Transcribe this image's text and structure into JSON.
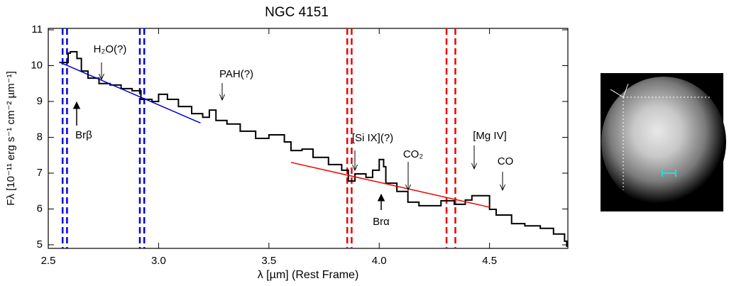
{
  "chart_data": {
    "type": "line",
    "title": "NGC 4151",
    "xlabel": "λ [µm] (Rest Frame)",
    "ylabel": "Fλ [10⁻¹¹ erg s⁻¹ cm⁻² µm⁻¹]",
    "xlim": [
      2.5,
      4.855
    ],
    "ylim": [
      4.9,
      11.04
    ],
    "xticks": [
      2.5,
      {
        "value": 3,
        "label": "3.0"
      },
      3.5,
      {
        "value": 4,
        "label": "4.0"
      },
      4.5
    ],
    "yticks": [
      5,
      6,
      7,
      8,
      9,
      10,
      11
    ],
    "series": [
      {
        "color": "#000000",
        "x": [
          2.55,
          2.59,
          2.6,
          2.63,
          2.65,
          2.68,
          2.73,
          2.78,
          2.83,
          2.88,
          2.92,
          2.97,
          3.0,
          3.04,
          3.09,
          3.15,
          3.2,
          3.23,
          3.26,
          3.31,
          3.37,
          3.44,
          3.5,
          3.57,
          3.6,
          3.65,
          3.7,
          3.77,
          3.83,
          3.86,
          3.89,
          3.94,
          3.97,
          4.0,
          4.02,
          4.03,
          4.08,
          4.13,
          4.18,
          4.23,
          4.28,
          4.34,
          4.39,
          4.42,
          4.47,
          4.5,
          4.53,
          4.6,
          4.66,
          4.73,
          4.79,
          4.84,
          4.85
        ],
        "values": [
          10.09,
          10.35,
          10.39,
          10.2,
          9.85,
          9.65,
          9.5,
          9.46,
          9.36,
          9.3,
          9.06,
          9.0,
          9.2,
          9.06,
          8.86,
          8.66,
          8.56,
          8.76,
          8.47,
          8.37,
          8.17,
          7.97,
          8.07,
          7.87,
          7.63,
          7.67,
          7.44,
          7.24,
          7.08,
          6.78,
          6.98,
          6.88,
          7.08,
          7.38,
          7.18,
          6.72,
          6.49,
          6.19,
          6.09,
          6.09,
          6.23,
          6.13,
          6.25,
          6.37,
          6.37,
          5.99,
          5.83,
          5.59,
          5.53,
          5.46,
          5.3,
          5.1,
          4.94
        ]
      },
      {
        "color": "#0000cc",
        "x": [
          2.55,
          3.19
        ],
        "values": [
          10.1,
          8.4
        ]
      },
      {
        "color": "#ee0000",
        "x": [
          3.6,
          4.5
        ],
        "values": [
          7.3,
          6.05
        ]
      }
    ],
    "vlines": [
      {
        "x": 2.565,
        "color": "#0000dd"
      },
      {
        "x": 2.585,
        "color": "#0000dd"
      },
      {
        "x": 2.915,
        "color": "#0000dd"
      },
      {
        "x": 2.935,
        "color": "#0000dd"
      },
      {
        "x": 3.855,
        "color": "#ee0000"
      },
      {
        "x": 3.875,
        "color": "#ee0000"
      },
      {
        "x": 4.305,
        "color": "#ee0000"
      },
      {
        "x": 4.345,
        "color": "#ee0000"
      }
    ],
    "annotations": [
      "H₂O(?)",
      "PAH(?)",
      "Brβ",
      "[Si IX](?)",
      "CO₂",
      "[Mg IV]",
      "CO",
      "Brα"
    ]
  }
}
